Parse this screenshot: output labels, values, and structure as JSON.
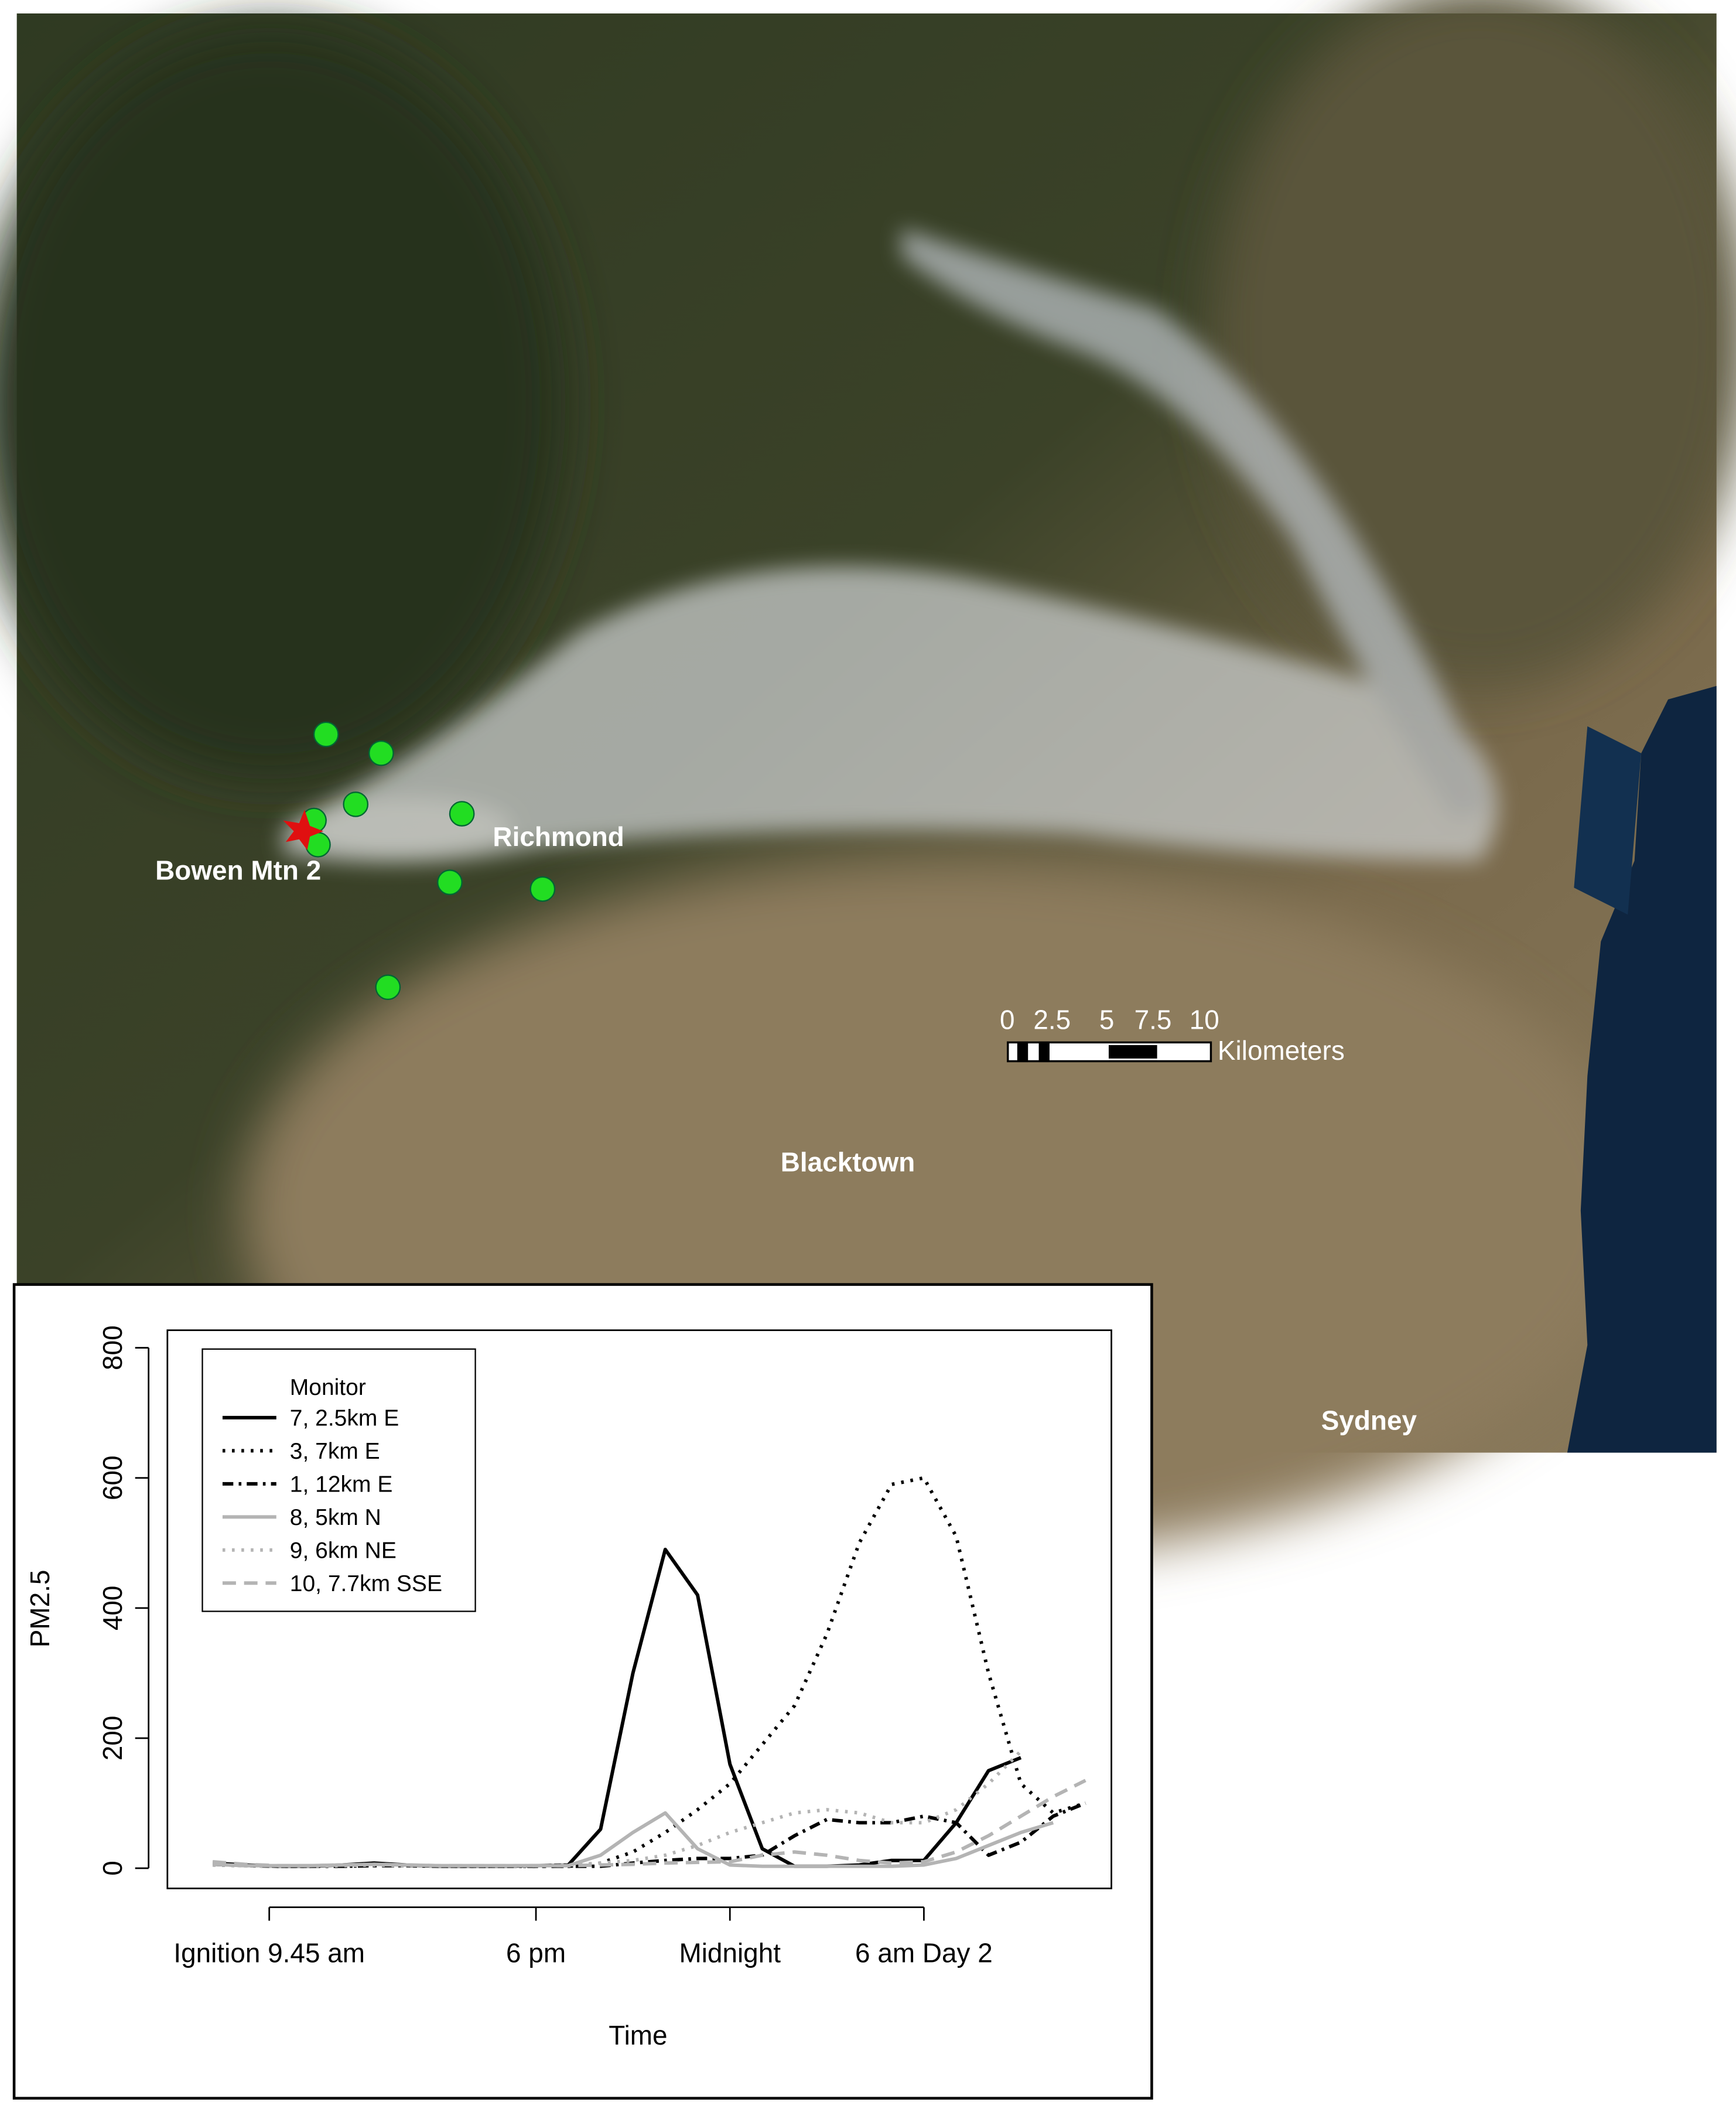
{
  "map": {
    "labels": [
      "Bowen Mtn 2",
      "Richmond",
      "Blacktown",
      "Sydney"
    ],
    "scale_bar": {
      "ticks": [
        "0",
        "2.5",
        "5",
        "7.5",
        "10"
      ],
      "unit": "Kilometers"
    }
  },
  "chart_data": {
    "type": "line",
    "x_label": "Time",
    "y_label": "PM2.5",
    "legend_title": "Monitor",
    "legend": "top-left",
    "xlim": [
      6.6,
      35.8
    ],
    "ylim": [
      -31,
      827
    ],
    "xticks": [
      {
        "value": 9.75,
        "label": "Ignition 9.45 am"
      },
      {
        "value": 18,
        "label": "6 pm"
      },
      {
        "value": 24,
        "label": "Midnight"
      },
      {
        "value": 30,
        "label": "6 am Day 2"
      }
    ],
    "yticks": [
      0,
      200,
      400,
      600,
      800
    ],
    "x": [
      8,
      9,
      10,
      11,
      12,
      13,
      14,
      15,
      16,
      17,
      18,
      19,
      20,
      21,
      22,
      23,
      24,
      25,
      26,
      27,
      28,
      29,
      30,
      31,
      32,
      33,
      34,
      35
    ],
    "series": [
      {
        "name": "7, 2.5km E",
        "color": "#000000",
        "line_style": "solid",
        "values": [
          8,
          5,
          3,
          3,
          5,
          8,
          5,
          3,
          3,
          3,
          4,
          5,
          60,
          300,
          490,
          420,
          160,
          30,
          3,
          3,
          5,
          12,
          12,
          70,
          150,
          170,
          null,
          null
        ]
      },
      {
        "name": "3, 7km E",
        "color": "#000000",
        "line_style": "dotted",
        "values": [
          5,
          4,
          3,
          3,
          3,
          4,
          4,
          3,
          3,
          3,
          3,
          3,
          8,
          25,
          55,
          90,
          130,
          190,
          250,
          360,
          500,
          590,
          600,
          510,
          300,
          130,
          85,
          100
        ]
      },
      {
        "name": "1, 12km E",
        "color": "#000000",
        "line_style": "dashdot",
        "values": [
          6,
          4,
          3,
          3,
          3,
          4,
          4,
          3,
          3,
          3,
          3,
          3,
          3,
          8,
          12,
          15,
          15,
          20,
          50,
          75,
          70,
          70,
          80,
          70,
          20,
          40,
          80,
          100
        ]
      },
      {
        "name": "8, 5km N",
        "color": "#b4b4b4",
        "line_style": "solid",
        "values": [
          6,
          4,
          4,
          4,
          5,
          6,
          5,
          4,
          4,
          4,
          4,
          4,
          20,
          55,
          85,
          30,
          5,
          3,
          3,
          3,
          3,
          3,
          5,
          15,
          35,
          55,
          70,
          null
        ]
      },
      {
        "name": "9, 6km NE",
        "color": "#b4b4b4",
        "line_style": "dotted",
        "values": [
          5,
          4,
          3,
          3,
          4,
          5,
          4,
          3,
          3,
          3,
          4,
          5,
          8,
          12,
          20,
          35,
          55,
          70,
          85,
          90,
          85,
          70,
          70,
          90,
          130,
          180,
          null,
          null
        ]
      },
      {
        "name": "10, 7.7km SSE",
        "color": "#b4b4b4",
        "line_style": "dashed",
        "values": [
          10,
          6,
          4,
          4,
          5,
          6,
          5,
          4,
          4,
          4,
          4,
          4,
          5,
          6,
          8,
          9,
          10,
          20,
          25,
          20,
          12,
          8,
          10,
          25,
          50,
          80,
          110,
          135
        ]
      }
    ]
  }
}
